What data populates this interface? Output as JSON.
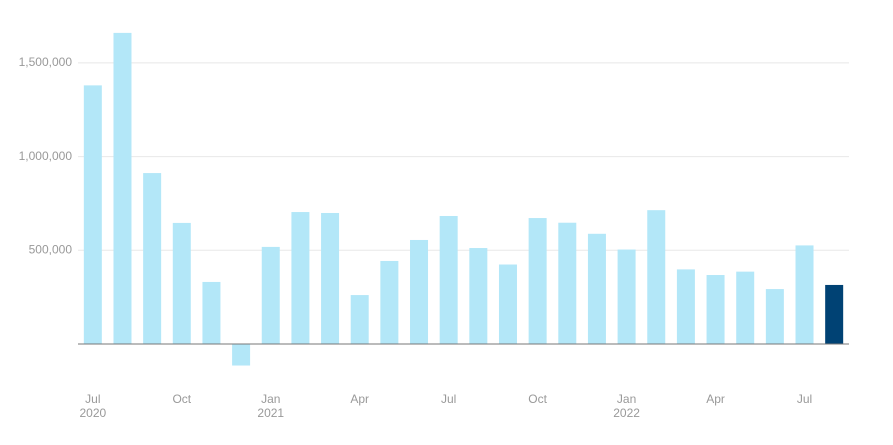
{
  "chart_data": {
    "type": "bar",
    "categories": [
      [
        "Jul",
        "2020"
      ],
      null,
      null,
      "Oct",
      null,
      null,
      [
        "Jan",
        "2021"
      ],
      null,
      null,
      "Apr",
      null,
      null,
      "Jul",
      null,
      null,
      "Oct",
      null,
      null,
      [
        "Jan",
        "2022"
      ],
      null,
      null,
      "Apr",
      null,
      null,
      "Jul",
      null
    ],
    "values": [
      1380000,
      1660000,
      912000,
      646000,
      331000,
      -115000,
      518000,
      704000,
      699000,
      261000,
      443000,
      555000,
      683000,
      512000,
      424000,
      672000,
      647000,
      588000,
      504000,
      714000,
      398000,
      368000,
      386000,
      293000,
      526000,
      315000
    ],
    "colors": [
      "#b3e7f8",
      "#b3e7f8",
      "#b3e7f8",
      "#b3e7f8",
      "#b3e7f8",
      "#b3e7f8",
      "#b3e7f8",
      "#b3e7f8",
      "#b3e7f8",
      "#b3e7f8",
      "#b3e7f8",
      "#b3e7f8",
      "#b3e7f8",
      "#b3e7f8",
      "#b3e7f8",
      "#b3e7f8",
      "#b3e7f8",
      "#b3e7f8",
      "#b3e7f8",
      "#b3e7f8",
      "#b3e7f8",
      "#b3e7f8",
      "#b3e7f8",
      "#b3e7f8",
      "#b3e7f8",
      "#004274"
    ],
    "ylim": [
      -165000,
      1700000
    ],
    "yticks": [
      0,
      {
        "value": 500000,
        "label": "500,000"
      },
      {
        "value": 1000000,
        "label": "1,000,000"
      },
      {
        "value": 1500000,
        "label": "1,500,000"
      }
    ],
    "grid": true
  }
}
